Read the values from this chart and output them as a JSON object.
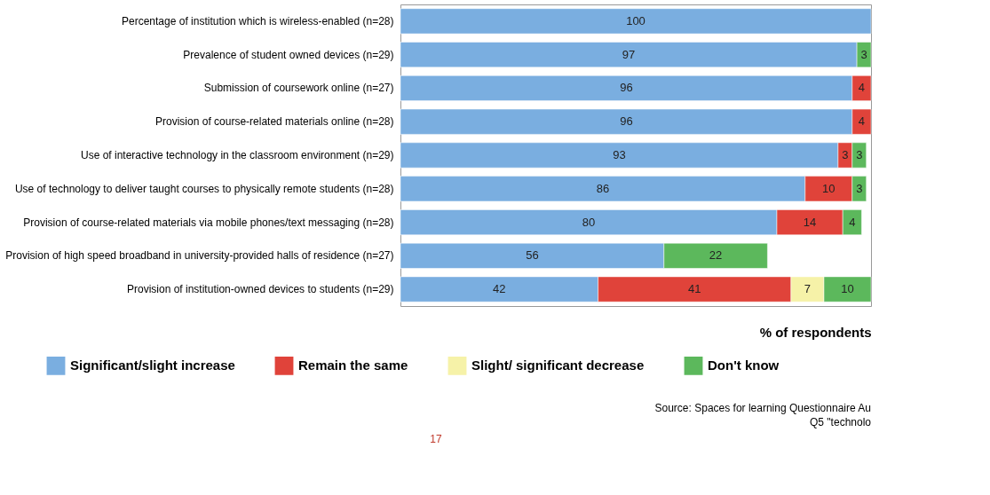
{
  "chart_data": {
    "type": "bar",
    "orientation": "horizontal",
    "stacked": true,
    "data_labels": true,
    "legend": "bottom",
    "grid": false,
    "tick_labels": "y",
    "xlabel": "% of respondents",
    "categories": [
      "Percentage of institution which is wireless-enabled (n=28)",
      "Prevalence of student owned devices  (n=29)",
      "Submission of coursework online (n=27)",
      "Provision of course-related materials online  (n=28)",
      "Use of interactive technology in the classroom  environment  (n=29)",
      "Use of technology to deliver taught courses to physically remote students (n=28)",
      "Provision of course-related materials via mobile phones/text messaging (n=28)",
      "Provision of high speed broadband in university-provided halls of residence (n=27)",
      "Provision of institution-owned devices to students  (n=29)"
    ],
    "series": [
      {
        "name": "Significant/slight increase",
        "color": "#7aaee0",
        "values": [
          100,
          97,
          96,
          96,
          93,
          86,
          80,
          56,
          42
        ]
      },
      {
        "name": "Remain the same",
        "color": "#e0433a",
        "values": [
          null,
          null,
          4,
          4,
          3,
          10,
          14,
          null,
          41
        ]
      },
      {
        "name": "Slight/ significant decrease",
        "color": "#f6f2a8",
        "values": [
          null,
          null,
          null,
          null,
          null,
          null,
          null,
          null,
          7
        ]
      },
      {
        "name": "Don't know",
        "color": "#5cb85c",
        "values": [
          null,
          3,
          null,
          null,
          3,
          3,
          4,
          22,
          10
        ]
      }
    ],
    "annotations": [
      "Source: Spaces for learning Questionnaire Au",
      "Q5 \"technolo",
      "17"
    ]
  }
}
